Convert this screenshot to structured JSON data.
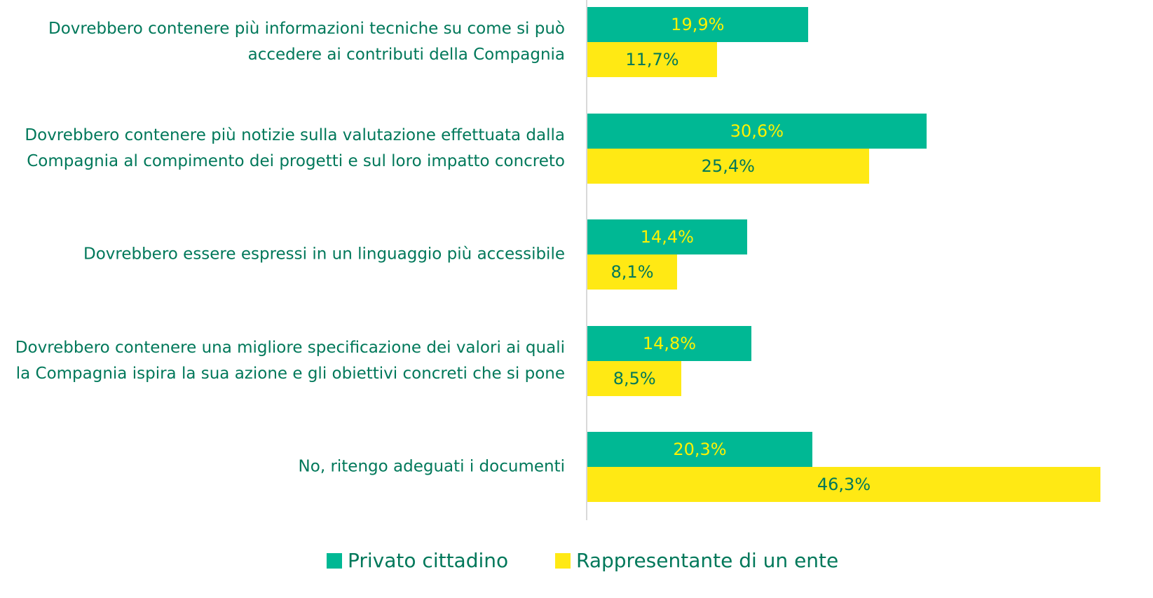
{
  "chart_data": {
    "type": "barh",
    "categories": [
      "Dovrebbero contenere più informazioni tecniche su come si può accedere ai contributi della Compagnia",
      "Dovrebbero contenere più notizie sulla valutazione effettuata dalla Compagnia al compimento dei progetti e sul loro impatto concreto",
      "Dovrebbero essere espressi in un linguaggio più accessibile",
      "Dovrebbero contenere una migliore specificazione dei valori ai quali la Compagnia ispira la sua azione e gli obiettivi concreti che si pone",
      "No, ritengo adeguati i documenti"
    ],
    "series": [
      {
        "name": "Privato cittadino",
        "color": "#00b894",
        "label_color": "#fff200",
        "values": [
          19.9,
          30.6,
          14.4,
          14.8,
          20.3
        ],
        "value_labels": [
          "19,9%",
          "30,6%",
          "14,4%",
          "14,8%",
          "20,3%"
        ]
      },
      {
        "name": "Rappresentante di un ente",
        "color": "#ffe914",
        "label_color": "#00785a",
        "values": [
          11.7,
          25.4,
          8.1,
          8.5,
          46.3
        ],
        "value_labels": [
          "11,7%",
          "25,4%",
          "8,1%",
          "8,5%",
          "46,3%"
        ]
      }
    ],
    "legend": "bottom"
  }
}
